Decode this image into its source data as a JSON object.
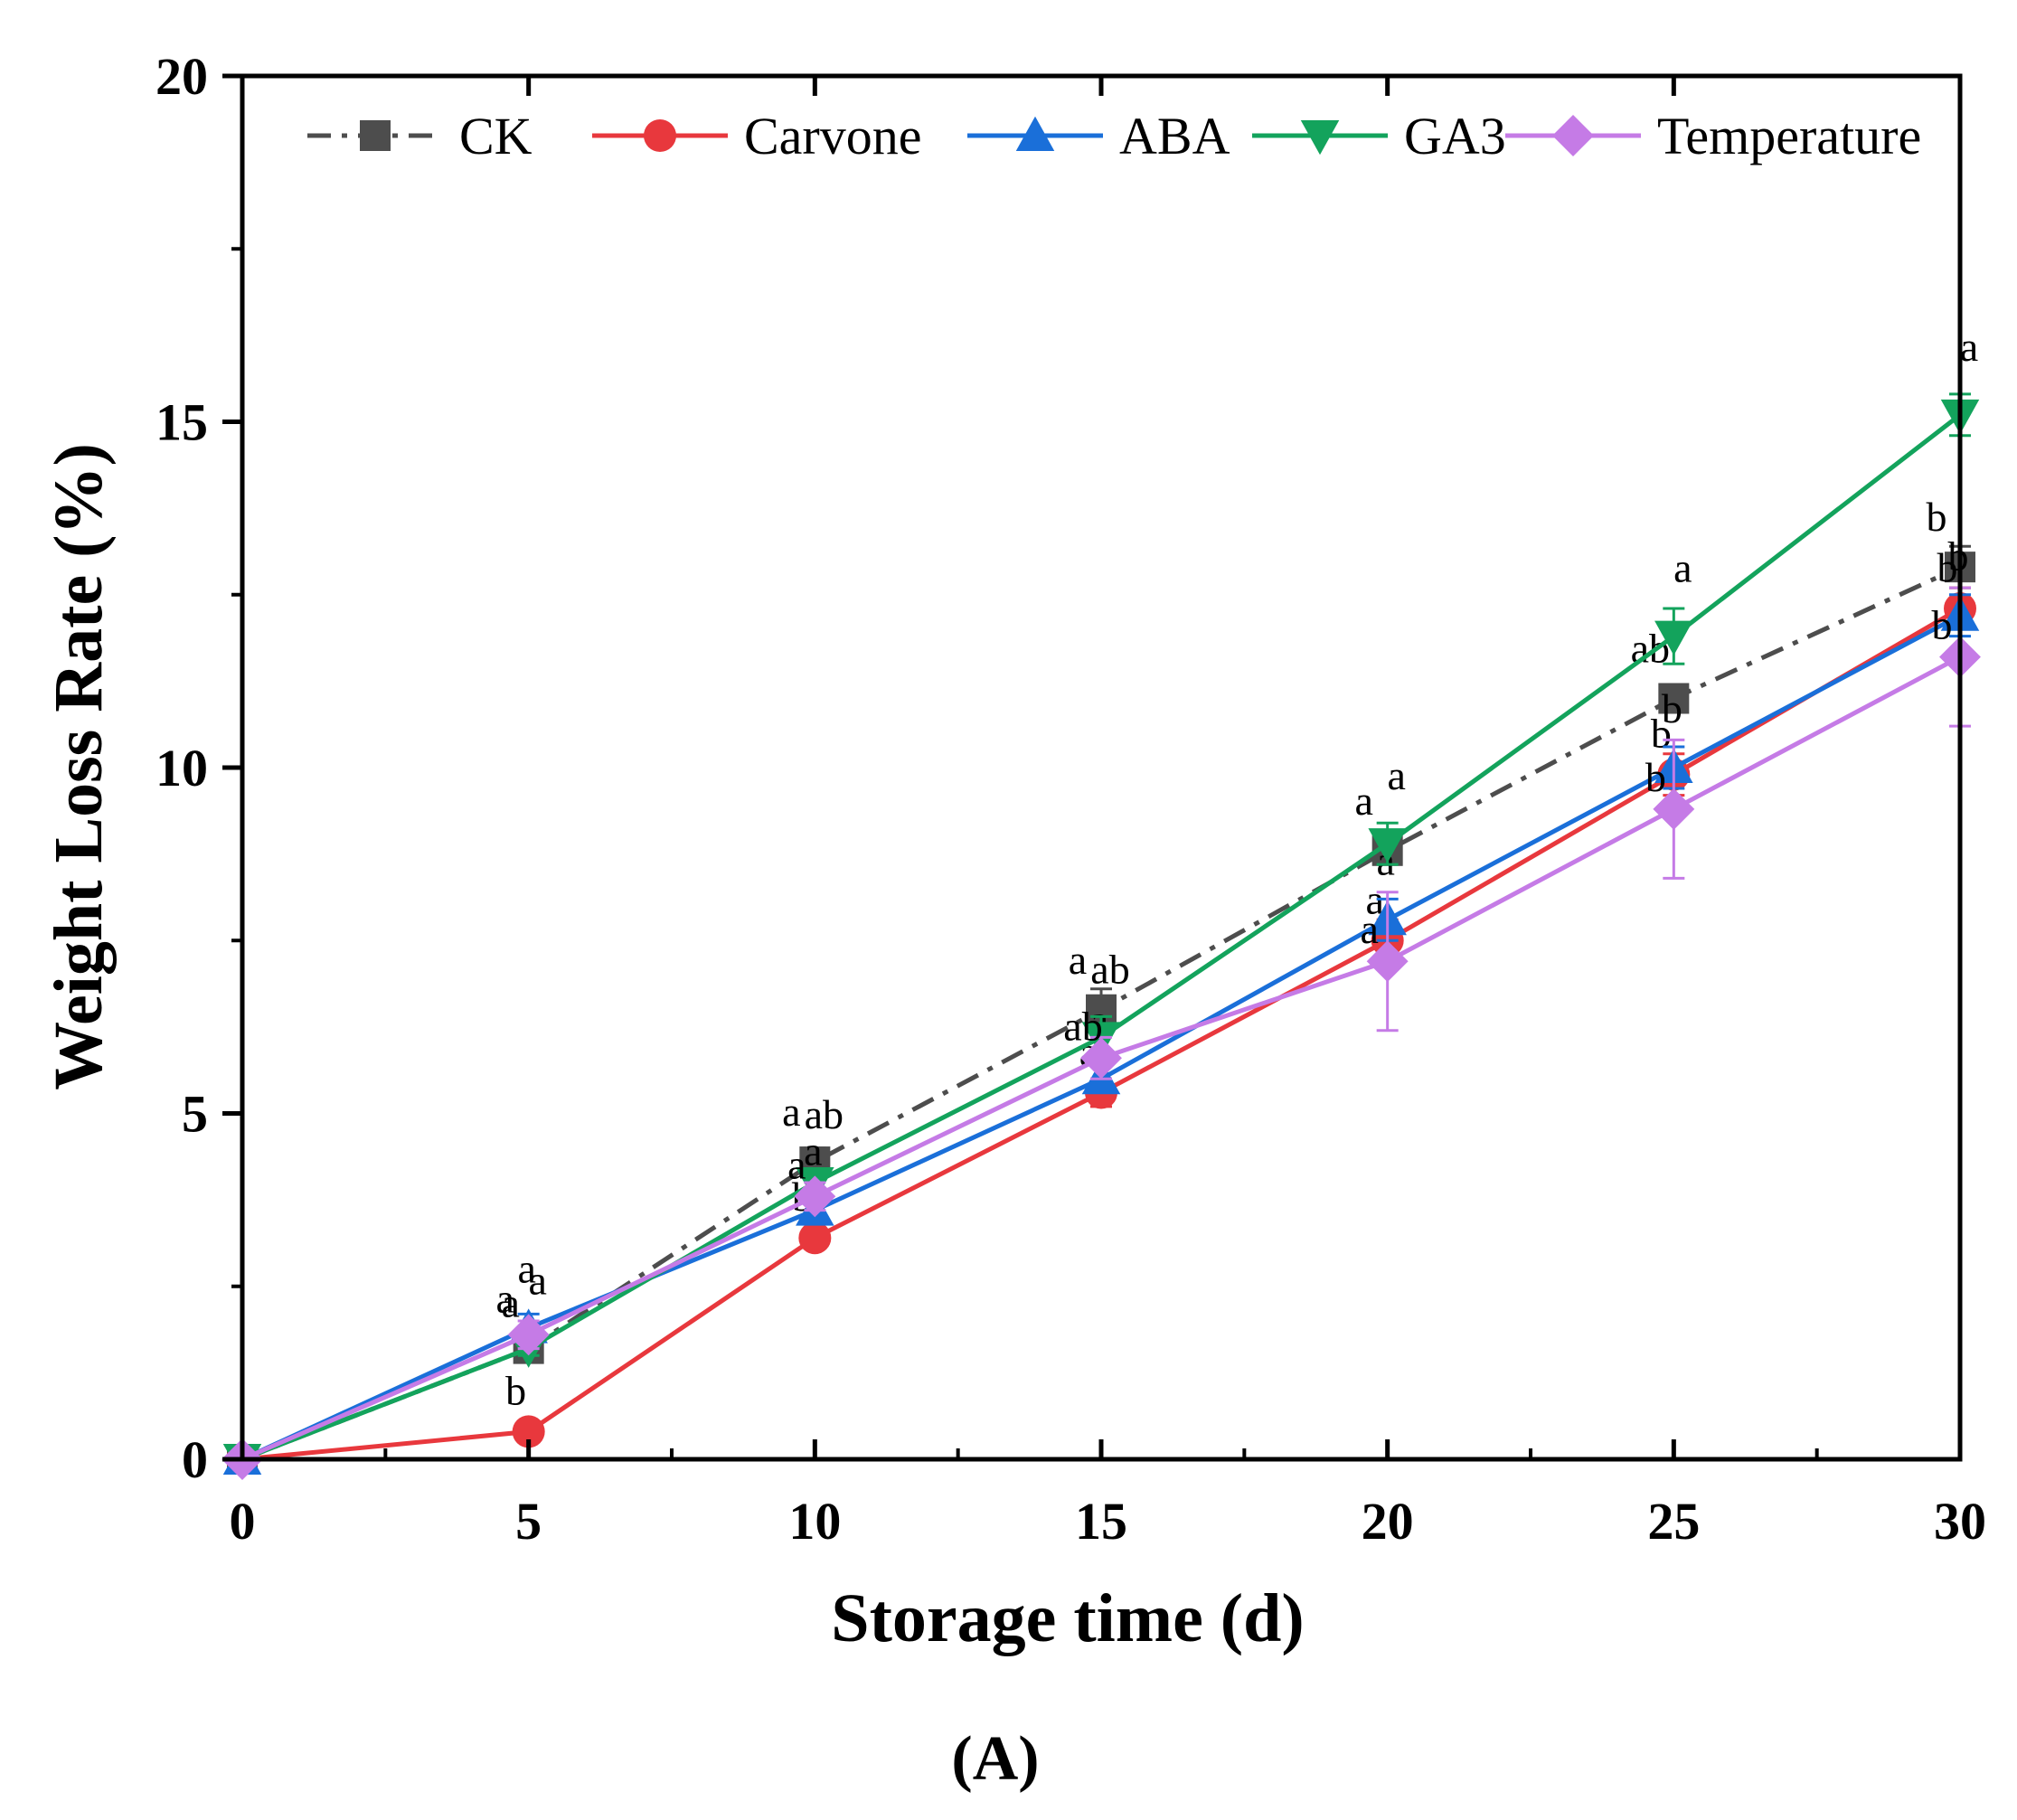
{
  "chart_data": {
    "type": "line",
    "title": "",
    "xlabel": "Storage time (d)",
    "ylabel": "Weight Loss Rate (%)",
    "panel_label": "(A)",
    "xlim": [
      0,
      30
    ],
    "ylim": [
      0,
      20
    ],
    "x_ticks": [
      "0",
      "5",
      "10",
      "15",
      "20",
      "25",
      "30"
    ],
    "y_ticks": [
      "0",
      "5",
      "10",
      "15",
      "20"
    ],
    "grid": false,
    "legend_position": "top",
    "x": [
      0,
      5,
      10,
      15,
      20,
      25,
      30
    ],
    "series": [
      {
        "name": "CK",
        "color": "#4d4d4d",
        "marker": "square",
        "line_style": "dash-dot",
        "values": [
          0,
          1.6,
          4.3,
          6.5,
          8.8,
          11.0,
          12.9
        ],
        "errors": [
          0,
          0.1,
          0.2,
          0.3,
          0.2,
          0.2,
          0.3
        ],
        "labels": [
          "",
          "a",
          "a",
          "a",
          "a",
          "ab",
          "b"
        ]
      },
      {
        "name": "Carvone",
        "color": "#e8383d",
        "marker": "circle",
        "line_style": "solid",
        "values": [
          0,
          0.4,
          3.2,
          5.3,
          7.5,
          9.9,
          12.3
        ],
        "errors": [
          0,
          0.1,
          0.1,
          0.2,
          0.3,
          0.3,
          0.3
        ],
        "labels": [
          "",
          "b",
          "b",
          "a",
          "a",
          "b",
          "b"
        ]
      },
      {
        "name": "ABA",
        "color": "#1a6fd9",
        "marker": "triangle-up",
        "line_style": "solid",
        "values": [
          0,
          1.9,
          3.6,
          5.5,
          7.8,
          10.0,
          12.2
        ],
        "errors": [
          0,
          0.2,
          0.2,
          0.2,
          0.3,
          0.3,
          0.3
        ],
        "labels": [
          "",
          "a",
          "a",
          "a",
          "a",
          "b",
          "b"
        ]
      },
      {
        "name": "GA3",
        "color": "#13a35c",
        "marker": "triangle-down",
        "line_style": "solid",
        "values": [
          0,
          1.6,
          4.0,
          6.1,
          8.9,
          11.9,
          15.1
        ],
        "errors": [
          0,
          0.1,
          0.2,
          0.3,
          0.3,
          0.4,
          0.3
        ],
        "labels": [
          "",
          "a",
          "ab",
          "ab",
          "a",
          "a",
          "a"
        ]
      },
      {
        "name": "Temperature",
        "color": "#c57be6",
        "marker": "diamond",
        "line_style": "solid",
        "values": [
          0,
          1.8,
          3.8,
          5.8,
          7.2,
          9.4,
          11.6
        ],
        "errors": [
          0,
          0.2,
          0.2,
          0.3,
          1.0,
          1.0,
          1.0
        ],
        "labels": [
          "",
          "a",
          "a",
          "ab",
          "a",
          "b",
          "b"
        ]
      }
    ]
  }
}
